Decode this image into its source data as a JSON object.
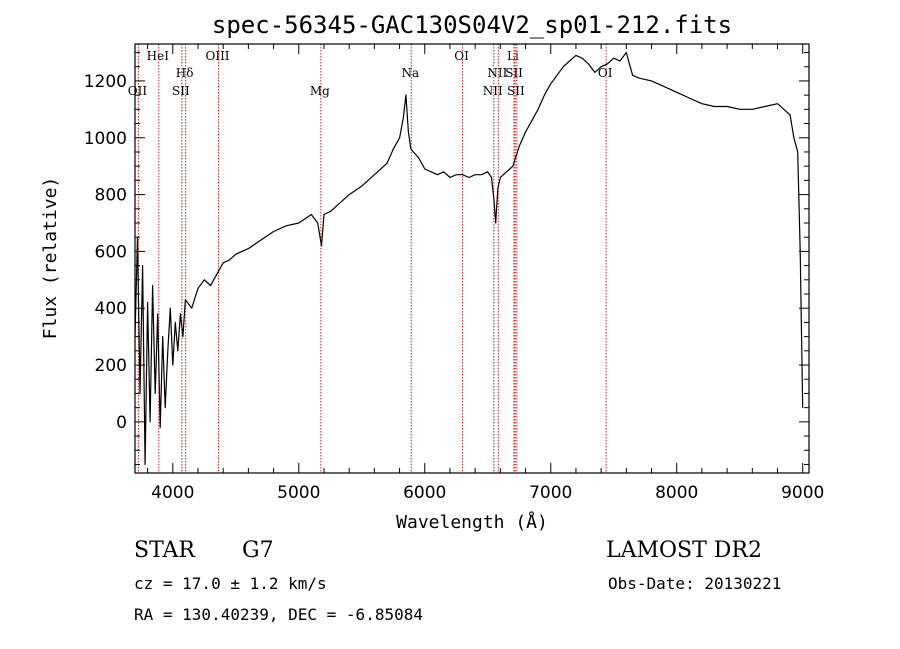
{
  "chart_data": {
    "type": "line",
    "title": "spec-56345-GAC130S04V2_sp01-212.fits",
    "xlabel": "Wavelength (Å)",
    "ylabel": "Flux (relative)",
    "xlim": [
      3700,
      9050
    ],
    "ylim": [
      -180,
      1330
    ],
    "xticks": [
      4000,
      5000,
      6000,
      7000,
      8000,
      9000
    ],
    "yticks": [
      0,
      200,
      400,
      600,
      800,
      1000,
      1200
    ],
    "grid": false,
    "line_color": "#000000",
    "marker_color": "#cc2222",
    "spectral_lines": [
      {
        "label": "OII",
        "x": 3727,
        "row": 3
      },
      {
        "label": "HeI",
        "x": 3889,
        "row": 1
      },
      {
        "label": "Hδ",
        "x": 4102,
        "row": 2
      },
      {
        "label": "SII",
        "x": 4072,
        "row": 3
      },
      {
        "label": "OIII",
        "x": 4363,
        "row": 1
      },
      {
        "label": "Mg",
        "x": 5175,
        "row": 3
      },
      {
        "label": "Na",
        "x": 5893,
        "row": 2
      },
      {
        "label": "OI",
        "x": 6300,
        "row": 1
      },
      {
        "label": "NII",
        "x": 6548,
        "row": 3
      },
      {
        "label": "NII",
        "x": 6584,
        "row": 2
      },
      {
        "label": "Li",
        "x": 6708,
        "row": 1
      },
      {
        "label": "SII",
        "x": 6717,
        "row": 2
      },
      {
        "label": "SII",
        "x": 6731,
        "row": 3
      },
      {
        "label": "OI",
        "x": 7440,
        "row": 2
      }
    ],
    "series": [
      {
        "x": [
          3700,
          3720,
          3740,
          3760,
          3780,
          3800,
          3820,
          3840,
          3860,
          3880,
          3900,
          3920,
          3940,
          3960,
          3980,
          4000,
          4020,
          4040,
          4060,
          4080,
          4100,
          4150,
          4200,
          4250,
          4300,
          4350,
          4400,
          4450,
          4500,
          4600,
          4700,
          4800,
          4900,
          5000,
          5100,
          5150,
          5180,
          5200,
          5250,
          5300,
          5400,
          5500,
          5600,
          5700,
          5750,
          5800,
          5830,
          5850,
          5870,
          5890,
          5910,
          5950,
          6000,
          6050,
          6100,
          6150,
          6200,
          6250,
          6300,
          6350,
          6400,
          6450,
          6500,
          6530,
          6550,
          6563,
          6580,
          6600,
          6650,
          6700,
          6750,
          6800,
          6850,
          6900,
          6950,
          7000,
          7050,
          7100,
          7150,
          7200,
          7250,
          7300,
          7350,
          7400,
          7450,
          7500,
          7550,
          7600,
          7650,
          7700,
          7800,
          7900,
          8000,
          8100,
          8200,
          8300,
          8400,
          8500,
          8600,
          8700,
          8800,
          8850,
          8900,
          8930,
          8960,
          8980,
          9000
        ],
        "values": [
          300,
          650,
          100,
          550,
          -150,
          420,
          0,
          480,
          100,
          380,
          -20,
          300,
          50,
          250,
          400,
          200,
          350,
          250,
          380,
          300,
          430,
          400,
          470,
          500,
          480,
          520,
          560,
          570,
          590,
          610,
          640,
          670,
          690,
          700,
          730,
          700,
          620,
          730,
          740,
          760,
          800,
          830,
          870,
          910,
          960,
          1000,
          1070,
          1150,
          1020,
          960,
          950,
          930,
          890,
          880,
          870,
          880,
          860,
          870,
          870,
          860,
          870,
          870,
          880,
          860,
          780,
          700,
          820,
          860,
          880,
          900,
          970,
          1020,
          1060,
          1100,
          1150,
          1190,
          1220,
          1250,
          1270,
          1290,
          1280,
          1260,
          1230,
          1250,
          1260,
          1280,
          1270,
          1300,
          1220,
          1210,
          1200,
          1180,
          1160,
          1140,
          1120,
          1110,
          1110,
          1100,
          1100,
          1110,
          1120,
          1100,
          1080,
          1000,
          950,
          600,
          50
        ]
      }
    ]
  },
  "info": {
    "object_class": "STAR",
    "subclass": "G7",
    "survey": "LAMOST DR2",
    "cz": "cz = 17.0 ± 1.2 km/s",
    "obs_date": "Obs-Date: 20130221",
    "coords": "RA = 130.40239, DEC =  -6.85084"
  }
}
